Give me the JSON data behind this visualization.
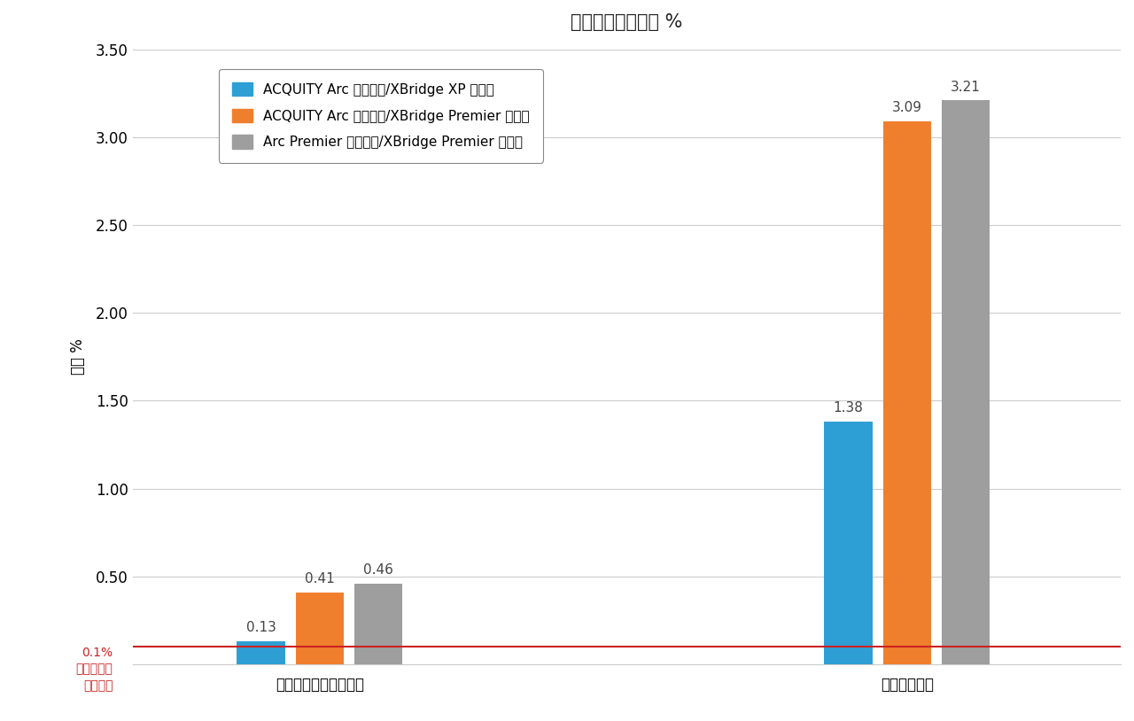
{
  "title": "テノホビルの面積 %",
  "ylabel": "面積 %",
  "groups": [
    "コントロールサンプル",
    "酸化サンプル"
  ],
  "series": [
    {
      "label": "ACQUITY Arc システム/XBridge XP カラム",
      "color": "#2E9FD4",
      "values": [
        0.13,
        1.38
      ]
    },
    {
      "label": "ACQUITY Arc システム/XBridge Premier カラム",
      "color": "#F07F2D",
      "values": [
        0.41,
        3.09
      ]
    },
    {
      "label": "Arc Premier システム/XBridge Premier カラム",
      "color": "#9E9E9E",
      "values": [
        0.46,
        3.21
      ]
    }
  ],
  "ylim": [
    0,
    3.5
  ],
  "yticks": [
    0.0,
    0.5,
    1.0,
    1.5,
    2.0,
    2.5,
    3.0,
    3.5
  ],
  "ytick_labels": [
    "",
    "0.50",
    "1.00",
    "1.50",
    "2.00",
    "2.50",
    "3.00",
    "3.50"
  ],
  "threshold_value": 0.1,
  "threshold_label": "0.1%\n不純物報告\nしきい値",
  "threshold_color": "#CC2222",
  "background_color": "#FFFFFF",
  "grid_color": "#CCCCCC",
  "bar_width": 0.18,
  "title_fontsize": 15,
  "label_fontsize": 12,
  "tick_fontsize": 12,
  "legend_fontsize": 11,
  "value_fontsize": 11
}
